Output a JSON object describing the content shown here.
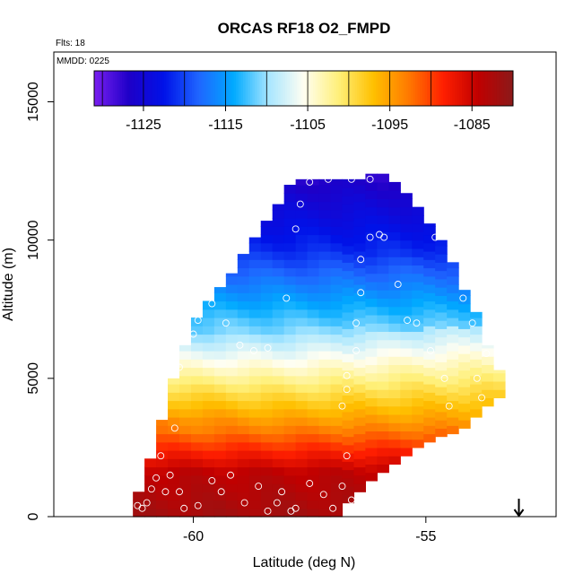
{
  "chart_data": {
    "type": "heatmap",
    "title": "ORCAS RF18 O2_FMPD",
    "annotations": {
      "flights": "Flts: 18",
      "mmdd": "MMDD: 0225"
    },
    "xlabel": "Latitude (deg N)",
    "ylabel": "Altitude (m)",
    "xlim": [
      -63,
      -52.2
    ],
    "ylim": [
      0,
      16800
    ],
    "x_ticks": [
      -60,
      -55
    ],
    "x_tick_labels": [
      "-60",
      "-55"
    ],
    "y_ticks": [
      0,
      5000,
      10000,
      15000
    ],
    "y_tick_labels": [
      "0",
      "5000",
      "10000",
      "15000"
    ],
    "colorbar": {
      "range": [
        -1131,
        -1080
      ],
      "ticks": [
        -1125,
        -1115,
        -1105,
        -1095,
        -1085
      ],
      "tick_labels": [
        "-1125",
        "-1115",
        "-1105",
        "-1095",
        "-1085"
      ],
      "colors": [
        "#7a1ff0",
        "#1e00c8",
        "#0012e8",
        "#1f66ff",
        "#00aaff",
        "#a8e6ff",
        "#fffef2",
        "#fff07a",
        "#ffc000",
        "#ff7a00",
        "#ff1f00",
        "#c00000",
        "#8b1a1a"
      ]
    },
    "grid": {
      "lat_start": -61.3,
      "lat_step": 0.25,
      "alt_step": 300
    },
    "envelope": [
      {
        "lat": -61.3,
        "alt_min": 0,
        "alt_max": 900
      },
      {
        "lat": -61.05,
        "alt_min": 0,
        "alt_max": 2100
      },
      {
        "lat": -60.8,
        "alt_min": 0,
        "alt_max": 3500
      },
      {
        "lat": -60.55,
        "alt_min": 0,
        "alt_max": 5000
      },
      {
        "lat": -60.3,
        "alt_min": 0,
        "alt_max": 6200
      },
      {
        "lat": -60.05,
        "alt_min": 0,
        "alt_max": 7200
      },
      {
        "lat": -59.8,
        "alt_min": 0,
        "alt_max": 7800
      },
      {
        "lat": -59.55,
        "alt_min": 0,
        "alt_max": 8300
      },
      {
        "lat": -59.3,
        "alt_min": 0,
        "alt_max": 8800
      },
      {
        "lat": -59.05,
        "alt_min": 0,
        "alt_max": 9500
      },
      {
        "lat": -58.8,
        "alt_min": 0,
        "alt_max": 10100
      },
      {
        "lat": -58.55,
        "alt_min": 0,
        "alt_max": 10700
      },
      {
        "lat": -58.3,
        "alt_min": 0,
        "alt_max": 11300
      },
      {
        "lat": -58.05,
        "alt_min": 0,
        "alt_max": 12000
      },
      {
        "lat": -57.8,
        "alt_min": 0,
        "alt_max": 12200
      },
      {
        "lat": -57.55,
        "alt_min": 0,
        "alt_max": 12200
      },
      {
        "lat": -57.3,
        "alt_min": 0,
        "alt_max": 12200
      },
      {
        "lat": -57.05,
        "alt_min": 0,
        "alt_max": 12200
      },
      {
        "lat": -56.8,
        "alt_min": 500,
        "alt_max": 12200
      },
      {
        "lat": -56.55,
        "alt_min": 900,
        "alt_max": 12200
      },
      {
        "lat": -56.3,
        "alt_min": 1300,
        "alt_max": 12400
      },
      {
        "lat": -56.05,
        "alt_min": 1600,
        "alt_max": 12400
      },
      {
        "lat": -55.8,
        "alt_min": 1900,
        "alt_max": 12100
      },
      {
        "lat": -55.55,
        "alt_min": 2200,
        "alt_max": 11700
      },
      {
        "lat": -55.3,
        "alt_min": 2500,
        "alt_max": 11200
      },
      {
        "lat": -55.05,
        "alt_min": 2700,
        "alt_max": 10600
      },
      {
        "lat": -54.8,
        "alt_min": 2900,
        "alt_max": 10000
      },
      {
        "lat": -54.55,
        "alt_min": 3000,
        "alt_max": 9200
      },
      {
        "lat": -54.3,
        "alt_min": 3200,
        "alt_max": 8200
      },
      {
        "lat": -54.05,
        "alt_min": 3600,
        "alt_max": 7400
      },
      {
        "lat": -53.8,
        "alt_min": 4000,
        "alt_max": 6200
      },
      {
        "lat": -53.55,
        "alt_min": 4300,
        "alt_max": 5300
      }
    ],
    "observations": [
      [
        -61.2,
        400
      ],
      [
        -61.1,
        300
      ],
      [
        -60.9,
        1000
      ],
      [
        -60.8,
        1400
      ],
      [
        -60.7,
        2200
      ],
      [
        -60.5,
        1500
      ],
      [
        -60.3,
        900
      ],
      [
        -60.2,
        300
      ],
      [
        -60.4,
        3200
      ],
      [
        -59.9,
        400
      ],
      [
        -59.6,
        1300
      ],
      [
        -59.4,
        900
      ],
      [
        -59.2,
        1500
      ],
      [
        -58.9,
        500
      ],
      [
        -58.6,
        1100
      ],
      [
        -58.4,
        200
      ],
      [
        -58.1,
        900
      ],
      [
        -57.8,
        300
      ],
      [
        -57.5,
        1200
      ],
      [
        -57.2,
        800
      ],
      [
        -57.0,
        300
      ],
      [
        -56.8,
        1100
      ],
      [
        -56.7,
        2200
      ],
      [
        -56.6,
        600
      ],
      [
        -60.3,
        5400
      ],
      [
        -60.0,
        6600
      ],
      [
        -59.9,
        7100
      ],
      [
        -59.6,
        7700
      ],
      [
        -59.3,
        7000
      ],
      [
        -59.0,
        6200
      ],
      [
        -58.7,
        6000
      ],
      [
        -58.4,
        6100
      ],
      [
        -58.0,
        7900
      ],
      [
        -57.8,
        10400
      ],
      [
        -57.7,
        11300
      ],
      [
        -57.5,
        12100
      ],
      [
        -57.1,
        12200
      ],
      [
        -56.6,
        12200
      ],
      [
        -56.2,
        12200
      ],
      [
        -55.5,
        12300
      ],
      [
        -55.2,
        11800
      ],
      [
        -56.4,
        9300
      ],
      [
        -56.2,
        10100
      ],
      [
        -56.0,
        10200
      ],
      [
        -55.9,
        10100
      ],
      [
        -55.6,
        8400
      ],
      [
        -55.4,
        7100
      ],
      [
        -55.2,
        7000
      ],
      [
        -54.9,
        6000
      ],
      [
        -54.6,
        5000
      ],
      [
        -54.5,
        4000
      ],
      [
        -53.9,
        5000
      ],
      [
        -53.8,
        4300
      ],
      [
        -56.4,
        8100
      ],
      [
        -56.5,
        7000
      ],
      [
        -56.5,
        6000
      ],
      [
        -56.7,
        5100
      ],
      [
        -56.7,
        4600
      ],
      [
        -56.8,
        4000
      ],
      [
        -54.8,
        10100
      ],
      [
        -54.2,
        7900
      ],
      [
        -54.0,
        7000
      ],
      [
        -53.7,
        5900
      ],
      [
        -57.9,
        200
      ],
      [
        -58.2,
        500
      ],
      [
        -60.6,
        900
      ],
      [
        -61.0,
        500
      ]
    ],
    "arrow_marker": {
      "lat": -53.0,
      "label": "arrow-down"
    }
  }
}
